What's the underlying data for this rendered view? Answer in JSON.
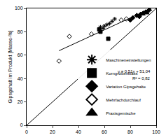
{
  "chart_data": {
    "type": "scatter",
    "y_label": "Gipsgehalt im Produkt [Masse-%]",
    "xlim": [
      0,
      100
    ],
    "ylim": [
      0,
      100
    ],
    "xticks": [
      0,
      20,
      40,
      60,
      80,
      100
    ],
    "yticks": [
      0,
      20,
      40,
      60,
      80,
      100
    ],
    "grid": false,
    "legend": "lower right",
    "annotations": [
      "y = 0,51x + 51,04",
      "R² = 0,82"
    ],
    "series": [
      {
        "type": "line",
        "line_style": "solid",
        "color": "#000000",
        "x": [
          0,
          100
        ],
        "values": [
          0,
          100
        ]
      },
      {
        "type": "line",
        "line_style": "solid",
        "color": "#000000",
        "x": [
          25,
          96
        ],
        "values": [
          63.8,
          100
        ]
      },
      {
        "name": "Maschineneinstellungen",
        "marker": "asterisk",
        "color": "#000000",
        "x": [
          57,
          59,
          60,
          62,
          64,
          66,
          68
        ],
        "values": [
          84,
          83,
          85,
          86,
          87,
          89,
          91
        ]
      },
      {
        "name": "Korngrößenklass",
        "marker": "square",
        "color": "#000000",
        "x": [
          56,
          57,
          63
        ],
        "values": [
          82,
          80,
          74
        ]
      },
      {
        "name": "Variation Gipsgehalte",
        "marker": "diamond",
        "color": "#000000",
        "x": [
          80,
          82,
          85,
          87,
          88,
          90,
          92,
          94
        ],
        "values": [
          90,
          92,
          94,
          93,
          95,
          96,
          97,
          98
        ]
      },
      {
        "name": "Mehrfachdurchlauf",
        "marker": "diamond-open",
        "color": "#000000",
        "x": [
          25,
          33,
          50,
          73,
          77
        ],
        "values": [
          55,
          76,
          78,
          90,
          91
        ]
      },
      {
        "name": "Praxisgemische",
        "marker": "triangle",
        "color": "#000000",
        "x": [
          90,
          93,
          95
        ],
        "values": [
          95,
          96,
          99
        ]
      }
    ]
  }
}
